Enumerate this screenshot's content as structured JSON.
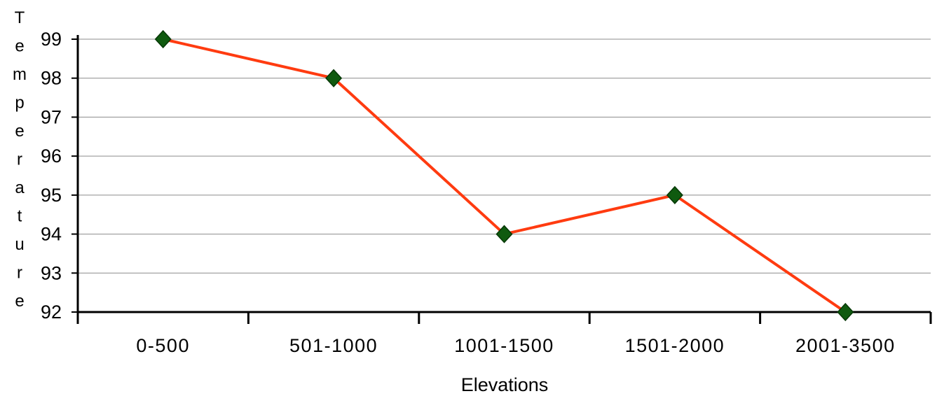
{
  "chart_data": {
    "type": "line",
    "categories": [
      "0-500",
      "501-1000",
      "1001-1500",
      "1501-2000",
      "2001-3500"
    ],
    "values": [
      99,
      98,
      94,
      95,
      92
    ],
    "xlabel": "Elevations",
    "ylabel": "Temperature",
    "ylim": [
      92,
      99
    ],
    "yticks": [
      92,
      93,
      94,
      95,
      96,
      97,
      98,
      99
    ],
    "grid": true,
    "legend": "none",
    "colors": {
      "line": "#ff3b10",
      "marker_fill": "#0f5a0f",
      "marker_stroke": "#063806",
      "grid": "#8c8c8c",
      "axis": "#000000"
    }
  }
}
